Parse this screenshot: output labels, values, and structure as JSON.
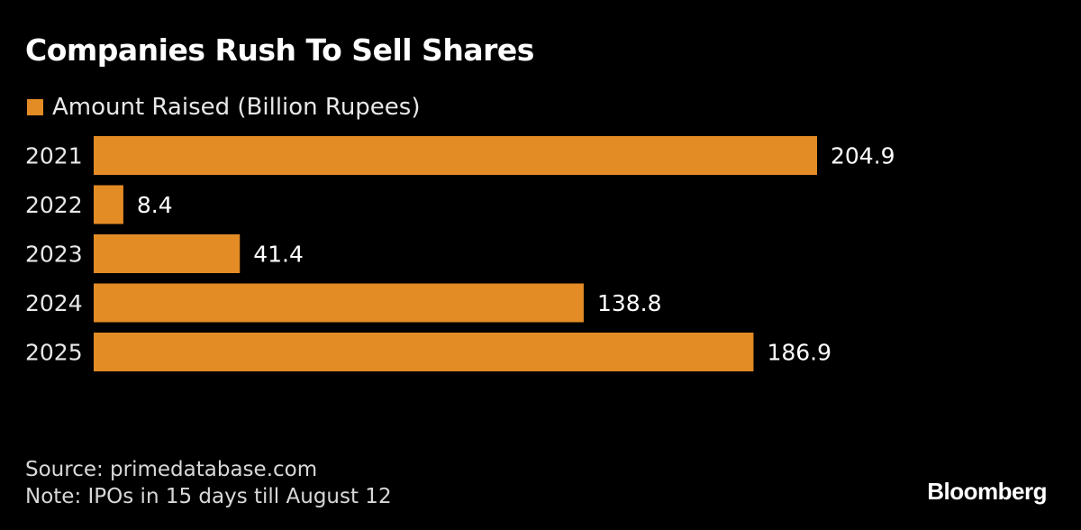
{
  "colors": {
    "background": "#000000",
    "bar": "#E38B25",
    "text": "#ffffff"
  },
  "chart_data": {
    "type": "bar",
    "orientation": "horizontal",
    "title": "Companies Rush To Sell Shares",
    "categories": [
      "2021",
      "2022",
      "2023",
      "2024",
      "2025"
    ],
    "series": [
      {
        "name": "Amount Raised (Billion Rupees)",
        "values": [
          204.9,
          8.4,
          41.4,
          138.8,
          186.9
        ]
      }
    ],
    "value_labels": [
      "204.9",
      "8.4",
      "41.4",
      "138.8",
      "186.9"
    ],
    "xlim": [
      0,
      204.9
    ],
    "grid": false,
    "legend_position": "top-left"
  },
  "footer": {
    "source": "Source: primedatabase.com",
    "note": "Note: IPOs in 15 days till August 12",
    "brand": "Bloomberg"
  }
}
